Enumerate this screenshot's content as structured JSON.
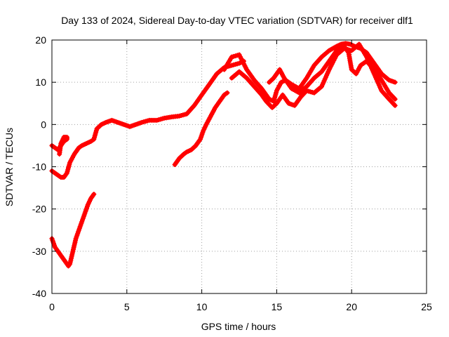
{
  "chart_data": {
    "type": "scatter",
    "title": "Day 133 of 2024, Sidereal Day-to-day VTEC variation (SDTVAR) for receiver dlf1",
    "xlabel": "GPS time / hours",
    "ylabel": "SDTVAR / TECUs",
    "xlim": [
      0,
      25
    ],
    "ylim": [
      -40,
      20
    ],
    "x_ticks": [
      0,
      5,
      10,
      15,
      20,
      25
    ],
    "y_ticks": [
      -40,
      -30,
      -20,
      -10,
      0,
      10,
      20
    ],
    "grid": true,
    "legend": "none",
    "series": [
      {
        "name": "track-morning-low",
        "color": "#ff0000",
        "x": [
          0.0,
          0.2,
          0.4,
          0.6,
          0.8,
          1.0,
          1.1,
          1.2,
          1.4,
          1.6,
          1.8,
          2.0,
          2.2,
          2.4,
          2.6,
          2.8
        ],
        "y": [
          -27,
          -29,
          -30,
          -31,
          -32,
          -33,
          -33.5,
          -33,
          -30,
          -27,
          -25,
          -23,
          -21,
          -19,
          -17.5,
          -16.5
        ]
      },
      {
        "name": "track-main-day",
        "color": "#ff0000",
        "x": [
          0.0,
          0.2,
          0.4,
          0.6,
          0.8,
          1.0,
          1.2,
          1.5,
          1.8,
          2.0,
          2.3,
          2.6,
          2.8,
          3.0,
          3.3,
          3.6,
          4.0,
          4.4,
          4.8,
          5.2,
          5.6,
          6.0,
          6.5,
          7.0,
          7.5,
          8.0,
          8.5,
          9.0,
          9.5,
          10.0,
          10.5,
          11.0,
          11.5,
          12.0,
          12.5,
          12.8
        ],
        "y": [
          -11,
          -11.5,
          -12,
          -12.5,
          -12.5,
          -11.5,
          -9,
          -7,
          -5.5,
          -5,
          -4.5,
          -4,
          -3.5,
          -1,
          0,
          0.5,
          1,
          0.5,
          0,
          -0.5,
          0,
          0.5,
          1,
          1,
          1.5,
          1.8,
          2,
          2.5,
          4.5,
          7,
          9.5,
          12,
          13.5,
          14,
          14.5,
          15
        ]
      },
      {
        "name": "track-dawn-loop",
        "color": "#ff0000",
        "x": [
          0.0,
          0.2,
          0.4,
          0.6,
          0.8,
          1.0,
          1.0,
          0.8,
          0.6,
          0.5
        ],
        "y": [
          -5,
          -5.5,
          -6,
          -5,
          -4,
          -3.5,
          -3,
          -3,
          -4.5,
          -7
        ]
      },
      {
        "name": "track-afternoon-rise",
        "color": "#ff0000",
        "x": [
          8.2,
          8.5,
          8.8,
          9.0,
          9.3,
          9.6,
          9.9,
          10.1,
          10.3,
          10.6,
          10.9,
          11.2,
          11.5,
          11.7
        ],
        "y": [
          -9.5,
          -8,
          -7,
          -6.5,
          -6,
          -5,
          -3.5,
          -1.5,
          0,
          2,
          4,
          5.5,
          7,
          7.5
        ]
      },
      {
        "name": "track-evening-a",
        "color": "#ff0000",
        "x": [
          11.5,
          12.0,
          12.5,
          13.0,
          13.5,
          14.0,
          14.5,
          14.8,
          15.0,
          15.3,
          15.6,
          16.0,
          16.5,
          17.0,
          17.5,
          18.0,
          18.5,
          19.0,
          19.3,
          19.6,
          19.9,
          20.2,
          20.6,
          21.0,
          21.5,
          22.0,
          22.5,
          22.9
        ],
        "y": [
          13,
          16,
          16.5,
          13,
          10.5,
          8.5,
          6,
          5.5,
          8,
          10,
          10.5,
          9.5,
          8.5,
          11,
          14,
          16,
          17.5,
          18.5,
          19,
          19.2,
          19,
          18.5,
          18,
          17,
          14.5,
          12,
          10.5,
          10
        ]
      },
      {
        "name": "track-evening-b",
        "color": "#ff0000",
        "x": [
          12.0,
          12.5,
          13.0,
          13.5,
          14.0,
          14.3,
          14.7,
          15.0,
          15.4,
          15.8,
          16.2,
          16.6,
          17.0,
          17.5,
          18.0,
          18.5,
          19.0,
          19.5,
          20.0,
          20.5,
          21.0,
          21.5,
          22.0,
          22.5,
          22.9
        ],
        "y": [
          11,
          12.5,
          11,
          9,
          7,
          5.5,
          4,
          5,
          7,
          5,
          4.5,
          6.5,
          8,
          7.5,
          9,
          13,
          16.5,
          18,
          17.5,
          19,
          16,
          12,
          8,
          6,
          4.5
        ]
      },
      {
        "name": "track-evening-c",
        "color": "#ff0000",
        "x": [
          14.5,
          14.8,
          15.0,
          15.2,
          15.5,
          16.0,
          16.5,
          17.0,
          17.5,
          18.0,
          18.5,
          19.0,
          19.5,
          19.8,
          20.0,
          20.3,
          20.6,
          21.0,
          21.5,
          22.0,
          22.5,
          22.9
        ],
        "y": [
          10,
          11,
          12,
          13,
          11,
          8.5,
          7.5,
          9,
          11,
          12.5,
          15,
          17.5,
          18.5,
          17,
          13,
          12,
          14,
          15,
          13,
          10.5,
          7.5,
          6
        ]
      }
    ]
  }
}
